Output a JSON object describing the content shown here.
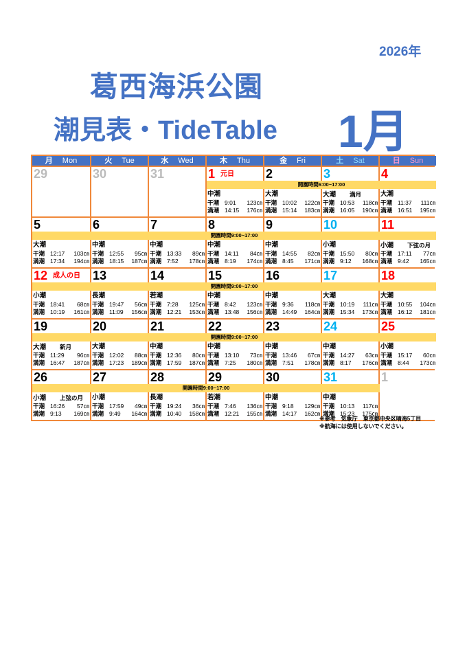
{
  "header": {
    "year": "2026年",
    "park": "葛西海浜公園",
    "subtitle": "潮見表・TideTable",
    "month": "1月"
  },
  "colors": {
    "title": "#4472c4",
    "header_bg": "#4472c4",
    "border": "#f0883a",
    "band": "#ffd966",
    "saturday": "#00b0f0",
    "sunday_holiday": "#ff0000",
    "other_month": "#bbbbbb"
  },
  "labels": {
    "low": "干潮",
    "high": "満潮"
  },
  "weekdays": [
    {
      "jp": "月",
      "en": "Mon",
      "cls": ""
    },
    {
      "jp": "火",
      "en": "Tue",
      "cls": ""
    },
    {
      "jp": "水",
      "en": "Wed",
      "cls": ""
    },
    {
      "jp": "木",
      "en": "Thu",
      "cls": ""
    },
    {
      "jp": "金",
      "en": "Fri",
      "cls": ""
    },
    {
      "jp": "土",
      "en": "Sat",
      "cls": "sat"
    },
    {
      "jp": "日",
      "en": "Sun",
      "cls": "sun"
    }
  ],
  "weeks": [
    {
      "band": {
        "text": "開園時間6:00~17:00",
        "from": 4,
        "to": 7
      },
      "days": [
        {
          "date": "29",
          "color": "grey"
        },
        {
          "date": "30",
          "color": "grey"
        },
        {
          "date": "31",
          "color": "grey"
        },
        {
          "date": "1",
          "color": "red",
          "holiday": "元日",
          "tide": "中潮",
          "low": [
            "9:01",
            "123㎝"
          ],
          "high": [
            "14:15",
            "176㎝"
          ]
        },
        {
          "date": "2",
          "color": "black",
          "tide": "大潮",
          "low": [
            "10:02",
            "122㎝"
          ],
          "high": [
            "15:14",
            "183㎝"
          ]
        },
        {
          "date": "3",
          "color": "sat",
          "tide": "大潮",
          "moon": "満月",
          "low": [
            "10:53",
            "118㎝"
          ],
          "high": [
            "16:05",
            "190㎝"
          ]
        },
        {
          "date": "4",
          "color": "red",
          "tide": "大潮",
          "low": [
            "11:37",
            "111㎝"
          ],
          "high": [
            "16:51",
            "195㎝"
          ]
        }
      ]
    },
    {
      "band": {
        "text": "開園時間9:00~17:00",
        "from": 1,
        "to": 7
      },
      "days": [
        {
          "date": "5",
          "color": "black",
          "tide": "大潮",
          "low": [
            "12:17",
            "103㎝"
          ],
          "high": [
            "17:34",
            "194㎝"
          ]
        },
        {
          "date": "6",
          "color": "black",
          "tide": "中潮",
          "low": [
            "12:55",
            "95㎝"
          ],
          "high": [
            "18:15",
            "187㎝"
          ]
        },
        {
          "date": "7",
          "color": "black",
          "tide": "中潮",
          "low": [
            "13:33",
            "89㎝"
          ],
          "high": [
            "7:52",
            "178㎝"
          ]
        },
        {
          "date": "8",
          "color": "black",
          "tide": "中潮",
          "low": [
            "14:11",
            "84㎝"
          ],
          "high": [
            "8:19",
            "174㎝"
          ]
        },
        {
          "date": "9",
          "color": "black",
          "tide": "中潮",
          "low": [
            "14:55",
            "82㎝"
          ],
          "high": [
            "8:45",
            "171㎝"
          ]
        },
        {
          "date": "10",
          "color": "sat",
          "tide": "小潮",
          "low": [
            "15:50",
            "80㎝"
          ],
          "high": [
            "9:12",
            "168㎝"
          ]
        },
        {
          "date": "11",
          "color": "red",
          "tide": "小潮",
          "moon": "下弦の月",
          "low": [
            "17:11",
            "77㎝"
          ],
          "high": [
            "9:42",
            "165㎝"
          ]
        }
      ]
    },
    {
      "band": {
        "text": "開園時間9:00~17:00",
        "from": 1,
        "to": 7
      },
      "days": [
        {
          "date": "12",
          "color": "red",
          "holiday": "成人の日",
          "tide": "小潮",
          "low": [
            "18:41",
            "68㎝"
          ],
          "high": [
            "10:19",
            "161㎝"
          ]
        },
        {
          "date": "13",
          "color": "black",
          "tide": "長潮",
          "low": [
            "19:47",
            "56㎝"
          ],
          "high": [
            "11:09",
            "156㎝"
          ]
        },
        {
          "date": "14",
          "color": "black",
          "tide": "若潮",
          "low": [
            "7:28",
            "125㎝"
          ],
          "high": [
            "12:21",
            "153㎝"
          ]
        },
        {
          "date": "15",
          "color": "black",
          "tide": "中潮",
          "low": [
            "8:42",
            "123㎝"
          ],
          "high": [
            "13:48",
            "156㎝"
          ]
        },
        {
          "date": "16",
          "color": "black",
          "tide": "中潮",
          "low": [
            "9:36",
            "118㎝"
          ],
          "high": [
            "14:49",
            "164㎝"
          ]
        },
        {
          "date": "17",
          "color": "sat",
          "tide": "大潮",
          "low": [
            "10:19",
            "111㎝"
          ],
          "high": [
            "15:34",
            "173㎝"
          ]
        },
        {
          "date": "18",
          "color": "red",
          "tide": "大潮",
          "low": [
            "10:55",
            "104㎝"
          ],
          "high": [
            "16:12",
            "181㎝"
          ]
        }
      ]
    },
    {
      "band": {
        "text": "開園時間9:00~17:00",
        "from": 1,
        "to": 7
      },
      "days": [
        {
          "date": "19",
          "color": "black",
          "tide": "大潮",
          "moon": "新月",
          "low": [
            "11:29",
            "96㎝"
          ],
          "high": [
            "16:47",
            "187㎝"
          ]
        },
        {
          "date": "20",
          "color": "black",
          "tide": "大潮",
          "low": [
            "12:02",
            "88㎝"
          ],
          "high": [
            "17:23",
            "189㎝"
          ]
        },
        {
          "date": "21",
          "color": "black",
          "tide": "中潮",
          "low": [
            "12:36",
            "80㎝"
          ],
          "high": [
            "17:59",
            "187㎝"
          ]
        },
        {
          "date": "22",
          "color": "black",
          "tide": "中潮",
          "low": [
            "13:10",
            "73㎝"
          ],
          "high": [
            "7:25",
            "180㎝"
          ]
        },
        {
          "date": "23",
          "color": "black",
          "tide": "中潮",
          "low": [
            "13:46",
            "67㎝"
          ],
          "high": [
            "7:51",
            "178㎝"
          ]
        },
        {
          "date": "24",
          "color": "sat",
          "tide": "中潮",
          "low": [
            "14:27",
            "63㎝"
          ],
          "high": [
            "8:17",
            "176㎝"
          ]
        },
        {
          "date": "25",
          "color": "red",
          "tide": "小潮",
          "low": [
            "15:17",
            "60㎝"
          ],
          "high": [
            "8:44",
            "173㎝"
          ]
        }
      ]
    },
    {
      "band": {
        "text": "開園時間9:00~17:00",
        "from": 1,
        "to": 6
      },
      "days": [
        {
          "date": "26",
          "color": "black",
          "tide": "小潮",
          "moon": "上弦の月",
          "low": [
            "16:26",
            "57㎝"
          ],
          "high": [
            "9:13",
            "169㎝"
          ]
        },
        {
          "date": "27",
          "color": "black",
          "tide": "小潮",
          "low": [
            "17:59",
            "49㎝"
          ],
          "high": [
            "9:49",
            "164㎝"
          ]
        },
        {
          "date": "28",
          "color": "black",
          "tide": "長潮",
          "low": [
            "19:24",
            "36㎝"
          ],
          "high": [
            "10:40",
            "158㎝"
          ]
        },
        {
          "date": "29",
          "color": "black",
          "tide": "若潮",
          "low": [
            "7:46",
            "136㎝"
          ],
          "high": [
            "12:21",
            "155㎝"
          ]
        },
        {
          "date": "30",
          "color": "black",
          "tide": "中潮",
          "low": [
            "9:18",
            "129㎝"
          ],
          "high": [
            "14:17",
            "162㎝"
          ]
        },
        {
          "date": "31",
          "color": "sat",
          "tide": "中潮",
          "low": [
            "10:13",
            "117㎝"
          ],
          "high": [
            "15:23",
            "175㎝"
          ]
        },
        {
          "date": "1",
          "color": "grey"
        }
      ]
    }
  ],
  "notes": [
    "※参考　気象庁　東京都中央区晴海5丁目",
    "※航海には使用しないでください。"
  ]
}
